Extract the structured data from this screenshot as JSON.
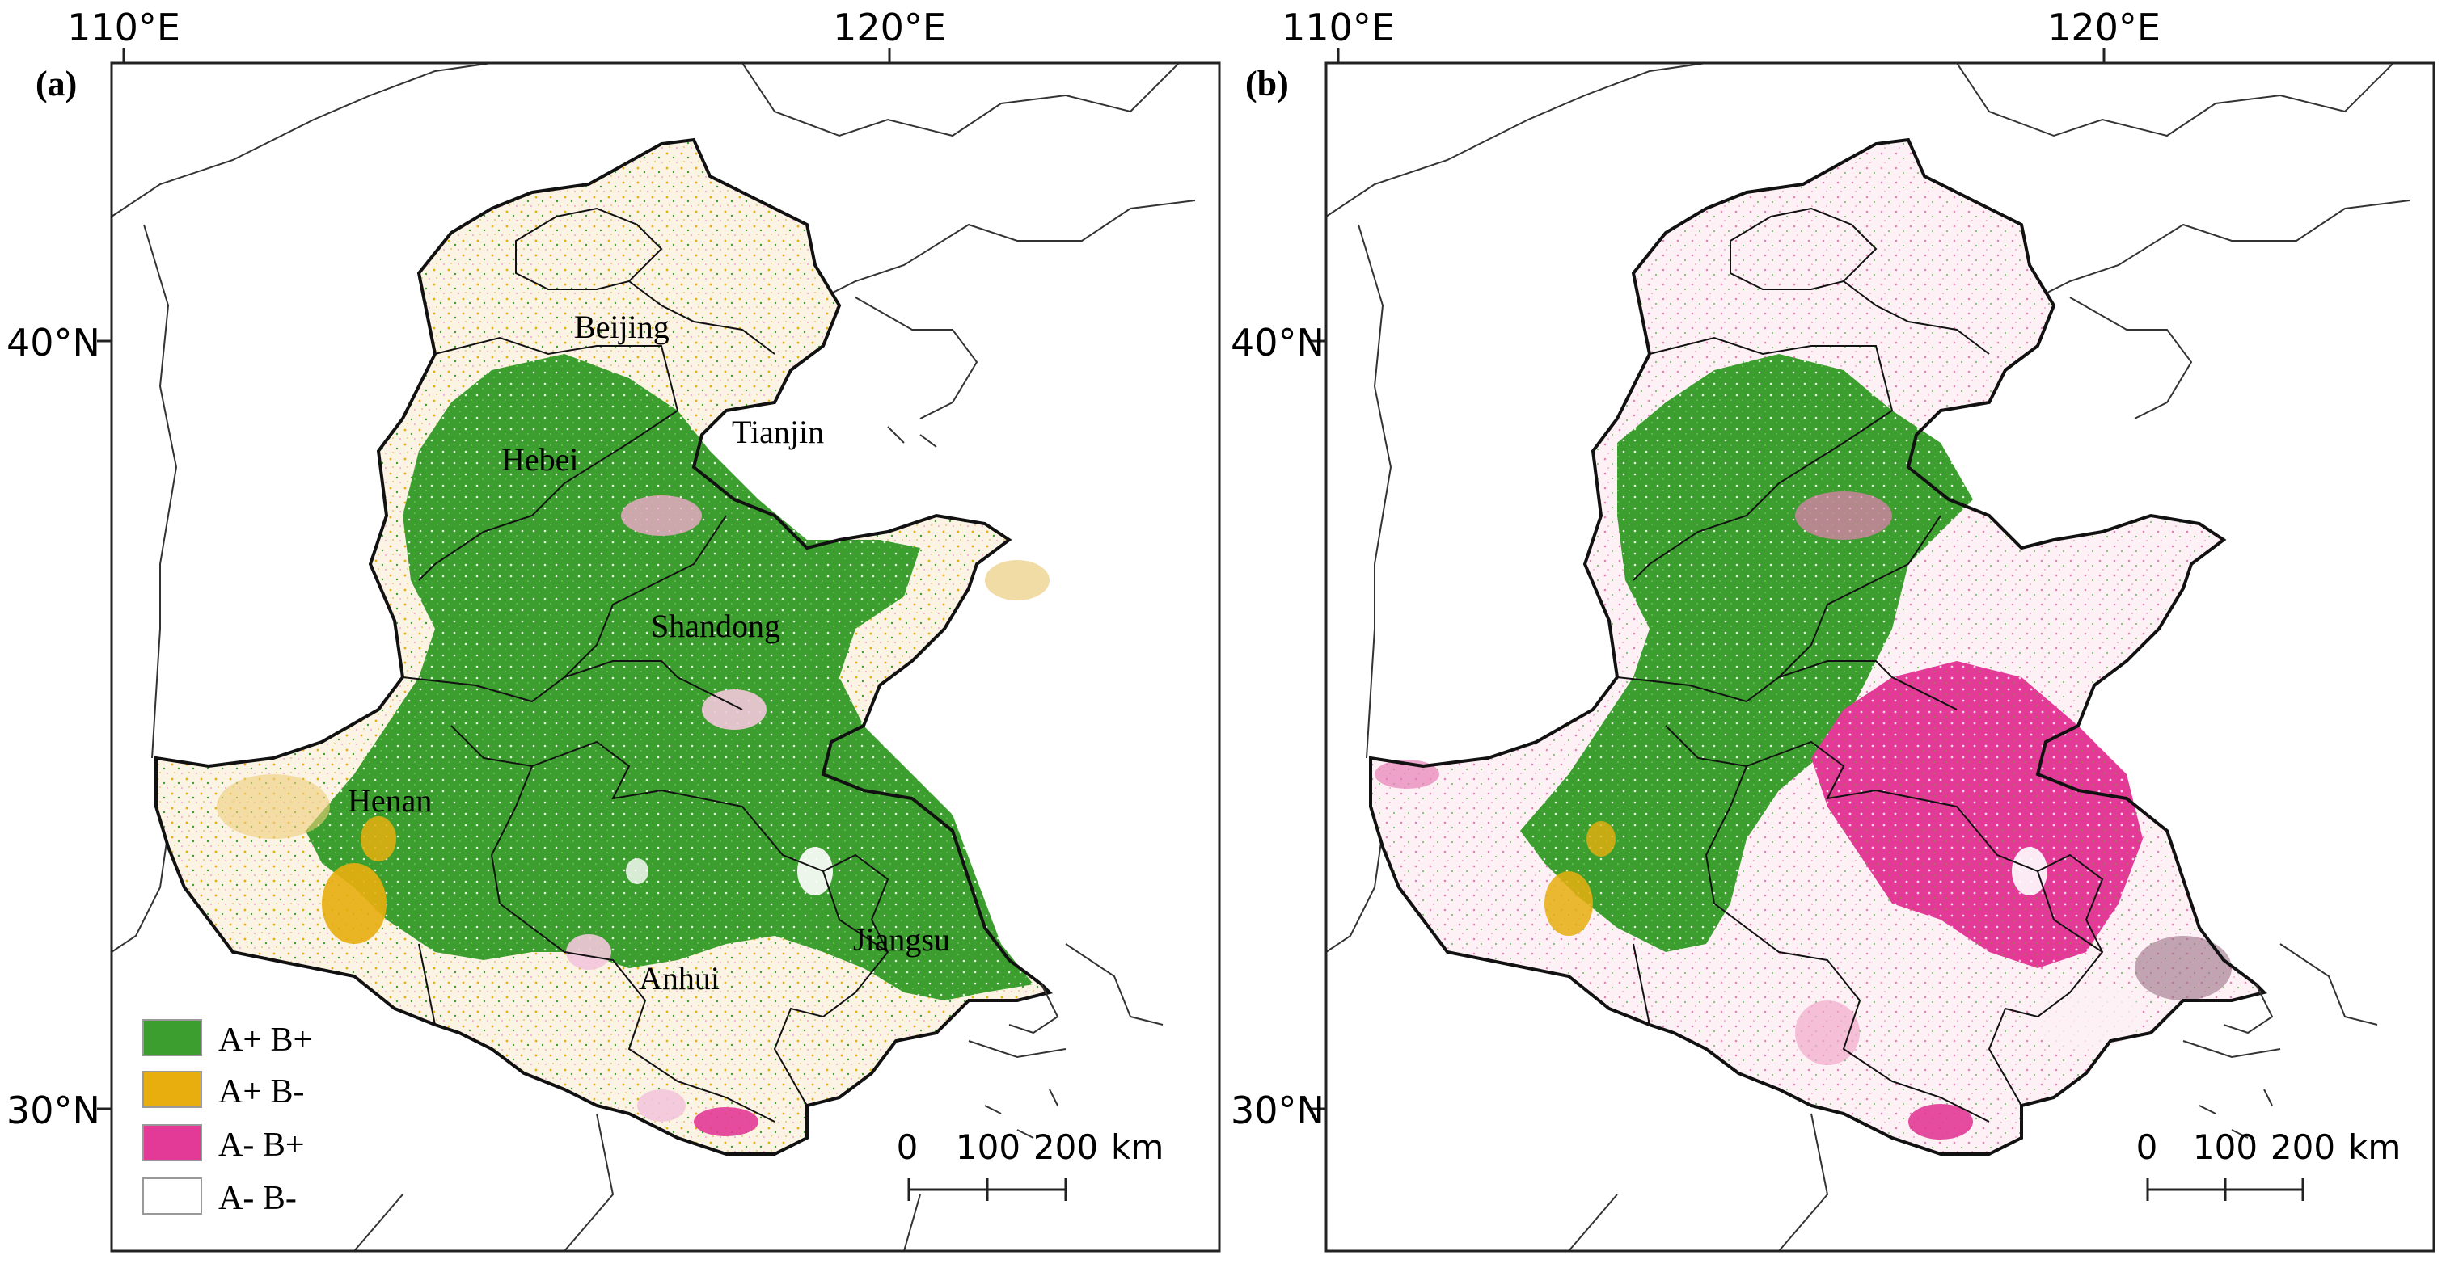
{
  "panels": [
    {
      "id": "a",
      "label": "(a)",
      "lon_labels": [
        "110°E",
        "120°E"
      ],
      "lat_labels": [
        "40°N",
        "30°N"
      ],
      "provinces": [
        "Beijing",
        "Tianjin",
        "Hebei",
        "Shandong",
        "Henan",
        "Anhui",
        "Jiangsu"
      ],
      "scale_bar": {
        "ticks": [
          "0",
          "100",
          "200"
        ],
        "unit": "km"
      }
    },
    {
      "id": "b",
      "label": "(b)",
      "lon_labels": [
        "110°E",
        "120°E"
      ],
      "lat_labels": [
        "40°N",
        "30°N"
      ],
      "scale_bar": {
        "ticks": [
          "0",
          "100",
          "200"
        ],
        "unit": "km"
      }
    }
  ],
  "legend": [
    {
      "label": "A+ B+",
      "color": "#3c9e2e"
    },
    {
      "label": "A+ B-",
      "color": "#e8ae0e"
    },
    {
      "label": "A- B+",
      "color": "#e23a96"
    },
    {
      "label": "A- B-",
      "color": "#ffffff"
    }
  ],
  "colors": {
    "frame": "#222222",
    "boundary": "#111111",
    "green": "#3c9e2e",
    "yellow": "#e8ae0e",
    "pink": "#e23a96",
    "light_pink": "#f3c6dc",
    "cream": "#f2e2b0"
  }
}
